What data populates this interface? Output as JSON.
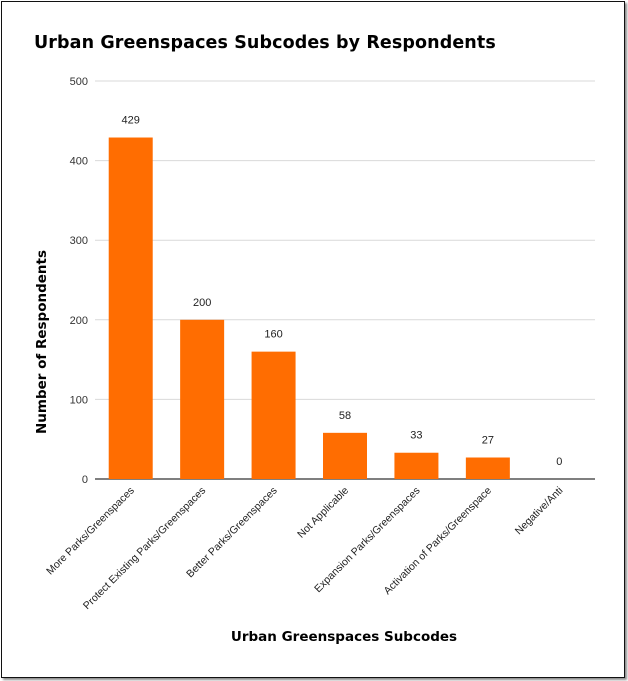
{
  "chart_data": {
    "type": "bar",
    "title": "Urban Greenspaces Subcodes by Respondents",
    "xlabel": "Urban Greenspaces Subcodes",
    "ylabel": "Number of Respondents",
    "categories": [
      "More Parks/Greenspaces",
      "Protect Existing Parks/Greenspaces",
      "Better Parks/Greenspaces",
      "Not Applicable",
      "Expansion Parks/Greenspaces",
      "Activation of Parks/Greenspace",
      "Negative/Anti"
    ],
    "values": [
      429,
      200,
      160,
      58,
      33,
      27,
      0
    ],
    "ylim": [
      0,
      500
    ],
    "yticks": [
      0,
      100,
      200,
      300,
      400,
      500
    ],
    "grid": true,
    "legend": "none",
    "bar_color": "#ff6d01"
  }
}
